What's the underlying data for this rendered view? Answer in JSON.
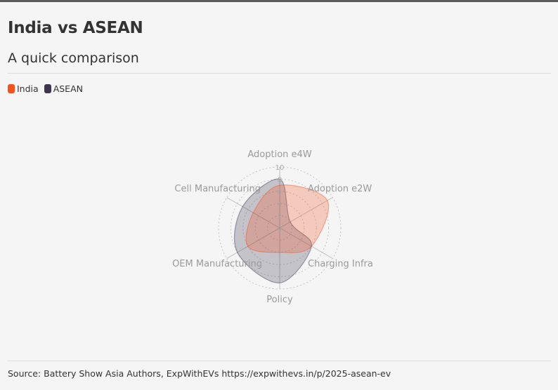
{
  "title": "India vs ASEAN",
  "subtitle": "A quick comparison",
  "source": "Source: Battery Show Asia Authors, ExpWithEVs https://expwithevs.in/p/2025-asean-ev",
  "legend": [
    {
      "label": "India",
      "color": "#f4511e"
    },
    {
      "label": "ASEAN",
      "color": "#3f3551"
    }
  ],
  "chart_data": {
    "type": "radar",
    "axes": [
      "Adoption e4W",
      "Adoption e2W",
      "Charging Infra",
      "Policy",
      "OEM Manufacturing",
      "Cell Manufacturing"
    ],
    "rlim": [
      0,
      10
    ],
    "ticks": [
      "0",
      "2",
      "4",
      "6",
      "8",
      "10"
    ],
    "grid": true,
    "series": [
      {
        "name": "India",
        "color": "#f4511e",
        "values": [
          7,
          9,
          6,
          4,
          6,
          5
        ]
      },
      {
        "name": "ASEAN",
        "color": "#3f3551",
        "values": [
          8,
          2,
          6,
          9,
          8,
          7
        ]
      }
    ]
  }
}
